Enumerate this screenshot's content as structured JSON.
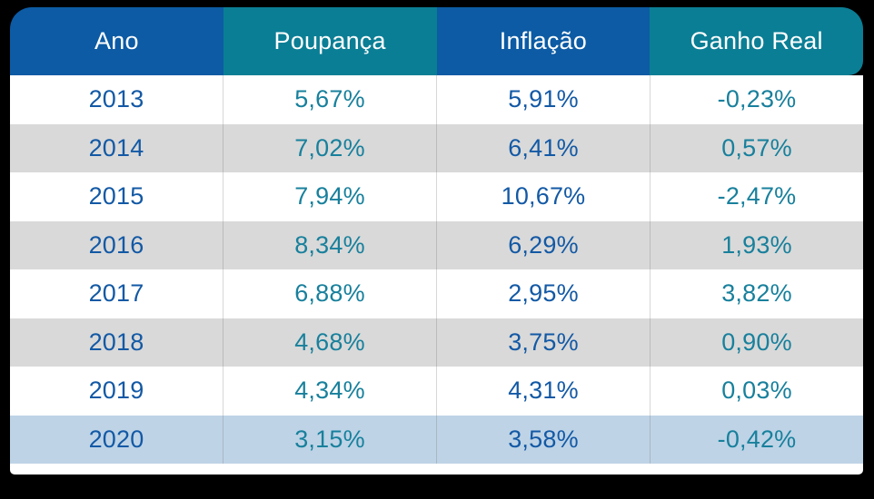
{
  "page": {
    "background": "#000000"
  },
  "table": {
    "header_text_color": "#ffffff",
    "columns": [
      {
        "label": "Ano",
        "header_bg": "#0c5ba4",
        "value_color": "#1359a5"
      },
      {
        "label": "Poupança",
        "header_bg": "#0a7e95",
        "value_color": "#18809c"
      },
      {
        "label": "Inflação",
        "header_bg": "#0c5ba4",
        "value_color": "#1359a5"
      },
      {
        "label": "Ganho Real",
        "header_bg": "#0a7e95",
        "value_color": "#18809c"
      }
    ],
    "row_colors": {
      "odd": "#ffffff",
      "even": "#d9d9d9",
      "highlight": "#bed3e6"
    },
    "rows": [
      {
        "cells": [
          "2013",
          "5,67%",
          "5,91%",
          "-0,23%"
        ],
        "highlight": false
      },
      {
        "cells": [
          "2014",
          "7,02%",
          "6,41%",
          "0,57%"
        ],
        "highlight": false
      },
      {
        "cells": [
          "2015",
          "7,94%",
          "10,67%",
          "-2,47%"
        ],
        "highlight": false
      },
      {
        "cells": [
          "2016",
          "8,34%",
          "6,29%",
          "1,93%"
        ],
        "highlight": false
      },
      {
        "cells": [
          "2017",
          "6,88%",
          "2,95%",
          "3,82%"
        ],
        "highlight": false
      },
      {
        "cells": [
          "2018",
          "4,68%",
          "3,75%",
          "0,90%"
        ],
        "highlight": false
      },
      {
        "cells": [
          "2019",
          "4,34%",
          "4,31%",
          "0,03%"
        ],
        "highlight": false
      },
      {
        "cells": [
          "2020",
          "3,15%",
          "3,58%",
          "-0,42%"
        ],
        "highlight": true
      }
    ]
  },
  "chart_data": {
    "type": "table",
    "title": "",
    "columns": [
      "Ano",
      "Poupança",
      "Inflação",
      "Ganho Real"
    ],
    "years": [
      2013,
      2014,
      2015,
      2016,
      2017,
      2018,
      2019,
      2020
    ],
    "series": [
      {
        "name": "Poupança",
        "values": [
          5.67,
          7.02,
          7.94,
          8.34,
          6.88,
          4.68,
          4.34,
          3.15
        ]
      },
      {
        "name": "Inflação",
        "values": [
          5.91,
          6.41,
          10.67,
          6.29,
          2.95,
          3.75,
          4.31,
          3.58
        ]
      },
      {
        "name": "Ganho Real",
        "values": [
          -0.23,
          0.57,
          -2.47,
          1.93,
          3.82,
          0.9,
          0.03,
          -0.42
        ]
      }
    ],
    "value_format": "percent, comma decimal separator",
    "highlighted_row": 2020
  }
}
